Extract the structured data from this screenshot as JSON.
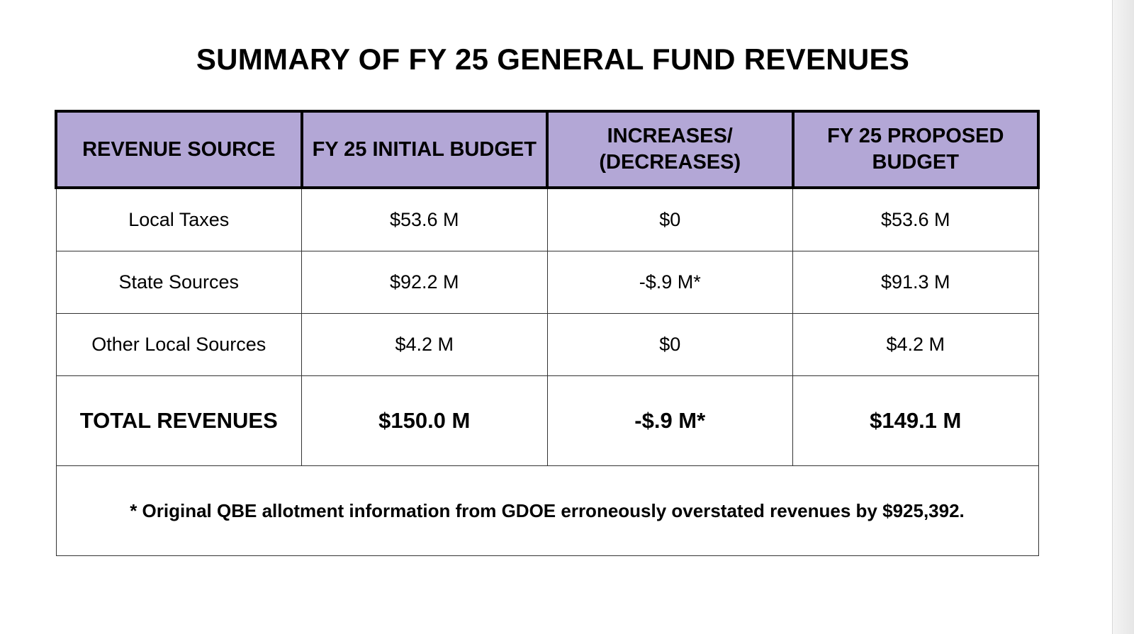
{
  "title": "SUMMARY OF FY 25 GENERAL FUND REVENUES",
  "colors": {
    "header_bg": "#b3a7d6",
    "border": "#000000",
    "background": "#ffffff"
  },
  "table": {
    "headers": [
      "REVENUE SOURCE",
      "FY 25 INITIAL BUDGET",
      "INCREASES/ (DECREASES)",
      "FY 25 PROPOSED BUDGET"
    ],
    "rows": [
      [
        "Local Taxes",
        "$53.6 M",
        "$0",
        "$53.6 M"
      ],
      [
        "State Sources",
        "$92.2 M",
        "-$.9 M*",
        "$91.3 M"
      ],
      [
        "Other Local Sources",
        "$4.2 M",
        "$0",
        "$4.2 M"
      ]
    ],
    "total": [
      "TOTAL REVENUES",
      "$150.0 M",
      "-$.9 M*",
      "$149.1 M"
    ],
    "footnote": "* Original QBE allotment information from GDOE erroneously overstated revenues by $925,392."
  }
}
